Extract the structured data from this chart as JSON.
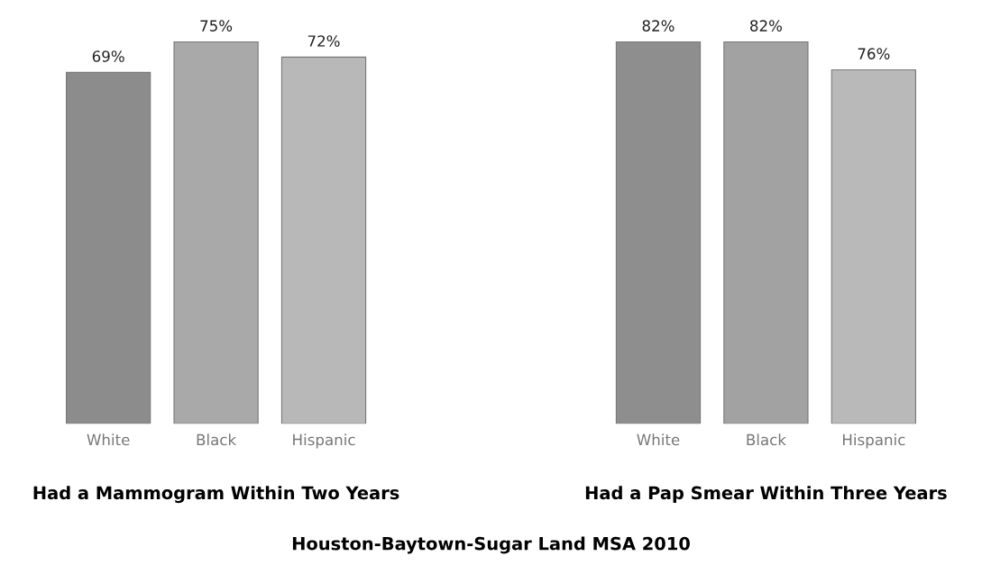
{
  "chart_data": [
    {
      "type": "bar",
      "xlabel": "Had a Mammogram Within Two Years",
      "categories": [
        "White",
        "Black",
        "Hispanic"
      ],
      "values": [
        69,
        75,
        72
      ],
      "colors": [
        "#8c8c8c",
        "#a9a9a9",
        "#b8b8b8"
      ],
      "value_labels": [
        "69%",
        "75%",
        "72%"
      ],
      "tick_labels": "x",
      "annotations": [
        "Houston-Baytown-Sugar Land MSA 2010"
      ]
    },
    {
      "type": "bar",
      "xlabel": "Had a Pap Smear Within Three Years",
      "categories": [
        "White",
        "Black",
        "Hispanic"
      ],
      "values": [
        82,
        82,
        76
      ],
      "colors": [
        "#8e8e8e",
        "#a2a2a2",
        "#b9b9b9"
      ],
      "value_labels": [
        "82%",
        "82%",
        "76%"
      ],
      "tick_labels": "x"
    }
  ]
}
